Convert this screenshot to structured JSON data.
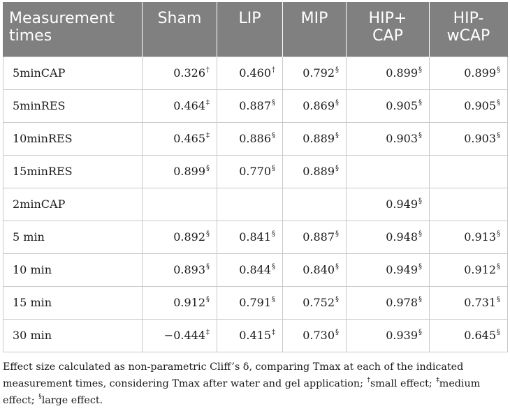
{
  "header": [
    "Measurement times",
    "Sham",
    "LIP",
    "MIP",
    "HIP+ CAP",
    "HIP- wCAP"
  ],
  "rows": [
    {
      "label": "5minCAP",
      "cells": [
        {
          "v": "0.326",
          "s": "†"
        },
        {
          "v": "0.460",
          "s": "†"
        },
        {
          "v": "0.792",
          "s": "§"
        },
        {
          "v": "0.899",
          "s": "§"
        },
        {
          "v": "0.899",
          "s": "§"
        }
      ]
    },
    {
      "label": "5minRES",
      "cells": [
        {
          "v": "0.464",
          "s": "‡"
        },
        {
          "v": "0.887",
          "s": "§"
        },
        {
          "v": "0.869",
          "s": "§"
        },
        {
          "v": "0.905",
          "s": "§"
        },
        {
          "v": "0.905",
          "s": "§"
        }
      ]
    },
    {
      "label": "10minRES",
      "cells": [
        {
          "v": "0.465",
          "s": "‡"
        },
        {
          "v": "0.886",
          "s": "§"
        },
        {
          "v": "0.889",
          "s": "§"
        },
        {
          "v": "0.903",
          "s": "§"
        },
        {
          "v": "0.903",
          "s": "§"
        }
      ]
    },
    {
      "label": "15minRES",
      "cells": [
        {
          "v": "0.899",
          "s": "§"
        },
        {
          "v": "0.770",
          "s": "§"
        },
        {
          "v": "0.889",
          "s": "§"
        },
        {
          "v": "",
          "s": ""
        },
        {
          "v": "",
          "s": ""
        }
      ]
    },
    {
      "label": "2minCAP",
      "cells": [
        {
          "v": "",
          "s": ""
        },
        {
          "v": "",
          "s": ""
        },
        {
          "v": "",
          "s": ""
        },
        {
          "v": "0.949",
          "s": "§"
        },
        {
          "v": "",
          "s": ""
        }
      ]
    },
    {
      "label": "5 min",
      "cells": [
        {
          "v": "0.892",
          "s": "§"
        },
        {
          "v": "0.841",
          "s": "§"
        },
        {
          "v": "0.887",
          "s": "§"
        },
        {
          "v": "0.948",
          "s": "§"
        },
        {
          "v": "0.913",
          "s": "§"
        }
      ]
    },
    {
      "label": "10 min",
      "cells": [
        {
          "v": "0.893",
          "s": "§"
        },
        {
          "v": "0.844",
          "s": "§"
        },
        {
          "v": "0.840",
          "s": "§"
        },
        {
          "v": "0.949",
          "s": "§"
        },
        {
          "v": "0.912",
          "s": "§"
        }
      ]
    },
    {
      "label": "15 min",
      "cells": [
        {
          "v": "0.912",
          "s": "§"
        },
        {
          "v": "0.791",
          "s": "§"
        },
        {
          "v": "0.752",
          "s": "§"
        },
        {
          "v": "0.978",
          "s": "§"
        },
        {
          "v": "0.731",
          "s": "§"
        }
      ]
    },
    {
      "label": "30 min",
      "cells": [
        {
          "v": "−0.444",
          "s": "‡"
        },
        {
          "v": "0.415",
          "s": "‡"
        },
        {
          "v": "0.730",
          "s": "§"
        },
        {
          "v": "0.939",
          "s": "§"
        },
        {
          "v": "0.645",
          "s": "§"
        }
      ]
    }
  ],
  "footnote": {
    "intro": "Effect size calculated as non-parametric Cliff’s δ, comparing Tmax at each of the indicated measurement times, considering Tmax after water and gel application; ",
    "small_mark": "†",
    "small_text": "small effect; ",
    "medium_mark": "‡",
    "medium_text": "medium effect; ",
    "large_mark": "§",
    "large_text": "large effect."
  }
}
